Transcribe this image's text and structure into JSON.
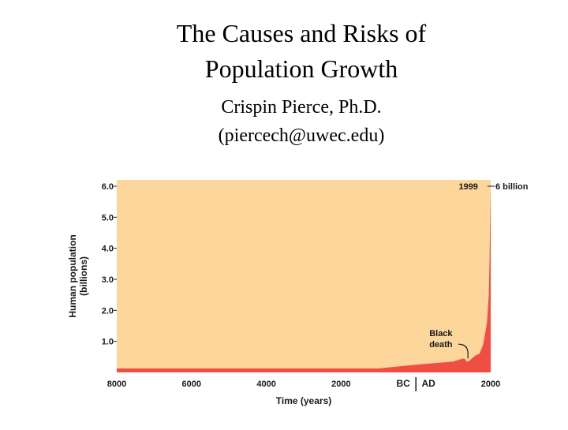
{
  "slide": {
    "title_line1": "The Causes and Risks of",
    "title_line2": "Population Growth",
    "author_line1": "Crispin Pierce, Ph.D.",
    "author_line2": "(piercech@uwec.edu)"
  },
  "chart_data": {
    "type": "area",
    "title": "",
    "xlabel": "Time (years)",
    "ylabel_line1": "Human population",
    "ylabel_line2": "(billions)",
    "ylim": [
      0,
      6.0
    ],
    "xlim": [
      -8000,
      2000
    ],
    "x_ticks": [
      -8000,
      -6000,
      -4000,
      -2000,
      2000
    ],
    "x_tick_labels": [
      "8000",
      "6000",
      "4000",
      "2000",
      "2000"
    ],
    "era_labels": {
      "bc": "BC",
      "ad": "AD"
    },
    "y_ticks": [
      1.0,
      2.0,
      3.0,
      4.0,
      5.0,
      6.0
    ],
    "y_tick_labels": [
      "1.0",
      "2.0",
      "3.0",
      "4.0",
      "5.0",
      "6.0"
    ],
    "grid": false,
    "colors": {
      "background": "#fcd69a",
      "area": "#f04e45",
      "text": "#1a1a1a"
    },
    "annotations": [
      {
        "text_lines": [
          "Black",
          "death"
        ],
        "x": 1350,
        "y": 0.35
      },
      {
        "text": "1999",
        "x": 1999,
        "y": 6.0
      },
      {
        "text": "6 billion",
        "x": 1999,
        "y": 6.0
      }
    ],
    "series": [
      {
        "x": [
          -8000,
          -6000,
          -4000,
          -3000,
          -2000,
          -1000,
          0,
          500,
          1000,
          1200,
          1300,
          1350,
          1400,
          1500,
          1600,
          1700,
          1800,
          1900,
          1950,
          1970,
          1990,
          1999
        ],
        "y": [
          0.005,
          0.01,
          0.02,
          0.03,
          0.05,
          0.1,
          0.25,
          0.3,
          0.35,
          0.43,
          0.45,
          0.36,
          0.35,
          0.45,
          0.55,
          0.6,
          0.9,
          1.6,
          2.5,
          3.7,
          5.3,
          6.0
        ]
      }
    ]
  }
}
